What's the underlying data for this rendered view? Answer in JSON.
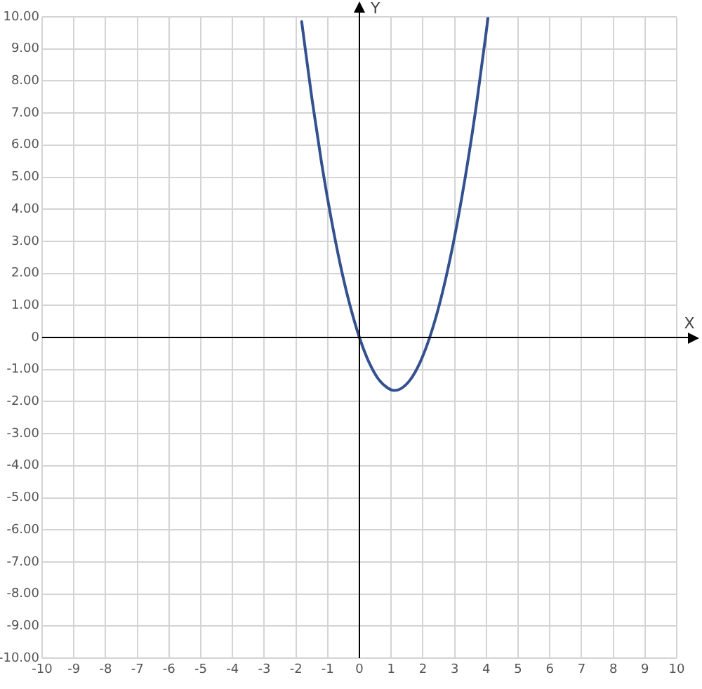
{
  "chart_data": {
    "type": "line",
    "xlabel": "X",
    "ylabel": "Y",
    "x": [
      -1.82,
      -1.5,
      -1.2,
      -0.9,
      -0.6,
      -0.3,
      0,
      0.3,
      0.6,
      0.9,
      1.1,
      1.3,
      1.6,
      1.9,
      2.2,
      2.5,
      2.8,
      3.1,
      3.4,
      3.7,
      4.0,
      4.05
    ],
    "series": [
      {
        "color": "#34518f",
        "values": [
          9.85,
          7.47,
          5.49,
          3.76,
          2.26,
          1.01,
          0,
          -0.77,
          -1.3,
          -1.58,
          -1.65,
          -1.6,
          -1.32,
          -0.8,
          -0.04,
          0.95,
          2.19,
          3.67,
          5.39,
          7.35,
          9.56,
          9.95
        ]
      }
    ],
    "xlim": [
      -10,
      10
    ],
    "ylim": [
      -10,
      10
    ],
    "xticks": [
      -10,
      -9,
      -8,
      -7,
      -6,
      -5,
      -4,
      -3,
      -2,
      -1,
      0,
      1,
      2,
      3,
      4,
      5,
      6,
      7,
      8,
      9,
      10
    ],
    "yticks": [
      {
        "value": -10,
        "label": "-10.00"
      },
      {
        "value": -9,
        "label": "-9.00"
      },
      {
        "value": -8,
        "label": "-8.00"
      },
      {
        "value": -7,
        "label": "-7.00"
      },
      {
        "value": -6,
        "label": "-6.00"
      },
      {
        "value": -5,
        "label": "-5.00"
      },
      {
        "value": -4,
        "label": "-4.00"
      },
      {
        "value": -3,
        "label": "-3.00"
      },
      {
        "value": -2,
        "label": "-2.00"
      },
      {
        "value": -1,
        "label": "-1.00"
      },
      0,
      {
        "value": 1,
        "label": "1.00"
      },
      {
        "value": 2,
        "label": "2.00"
      },
      {
        "value": 3,
        "label": "3.00"
      },
      {
        "value": 4,
        "label": "4.00"
      },
      {
        "value": 5,
        "label": "5.00"
      },
      {
        "value": 6,
        "label": "6.00"
      },
      {
        "value": 7,
        "label": "7.00"
      },
      {
        "value": 8,
        "label": "8.00"
      },
      {
        "value": 9,
        "label": "9.00"
      },
      {
        "value": 10,
        "label": "10.00"
      }
    ],
    "grid": true,
    "marker": "none",
    "line_style": "solid"
  }
}
